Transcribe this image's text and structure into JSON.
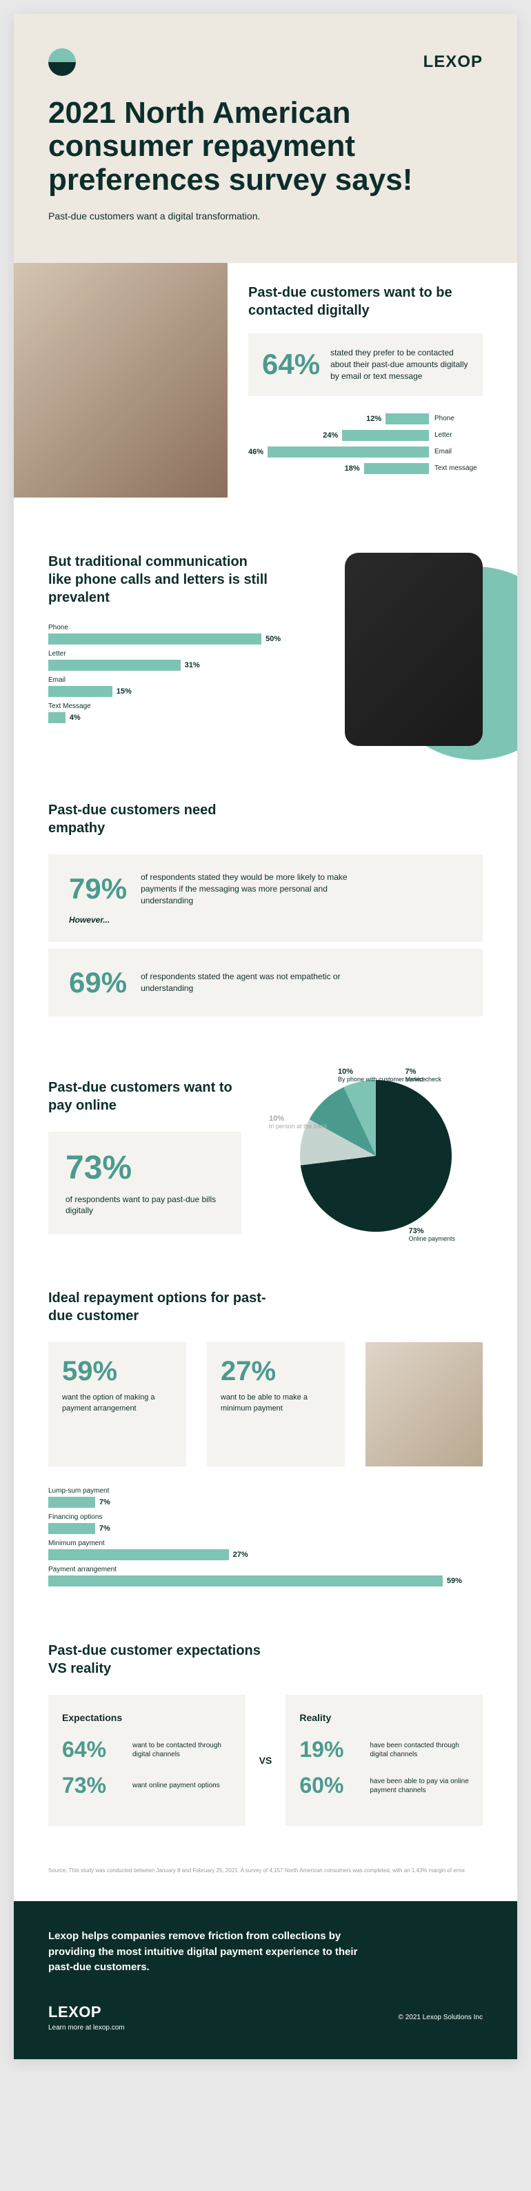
{
  "header": {
    "brand": "LEXOP",
    "title": "2021 North American consumer repayment preferences survey says!",
    "subtitle": "Past-due customers want a digital transformation."
  },
  "s1": {
    "heading": "Past-due customers want to be contacted digitally",
    "stat_pct": "64%",
    "stat_text": "stated they prefer to be contacted about their past-due amounts digitally by email or text message",
    "chart": {
      "type": "bar-horizontal",
      "bar_color": "#7ec4b5",
      "items": [
        {
          "label": "Phone",
          "pct": "12%",
          "value": 12
        },
        {
          "label": "Letter",
          "pct": "24%",
          "value": 24
        },
        {
          "label": "Email",
          "pct": "46%",
          "value": 46
        },
        {
          "label": "Text message",
          "pct": "18%",
          "value": 18
        }
      ],
      "max": 50
    }
  },
  "s2": {
    "heading": "But traditional communication like phone calls and letters is still prevalent",
    "chart": {
      "type": "bar-horizontal",
      "bar_color": "#7ec4b5",
      "items": [
        {
          "label": "Phone",
          "pct": "50%",
          "value": 50
        },
        {
          "label": "Letter",
          "pct": "31%",
          "value": 31
        },
        {
          "label": "Email",
          "pct": "15%",
          "value": 15
        },
        {
          "label": "Text Message",
          "pct": "4%",
          "value": 4
        }
      ],
      "max": 55
    }
  },
  "s3": {
    "heading": "Past-due customers need empathy",
    "row1_pct": "79%",
    "row1_text": "of respondents stated they would be more likely to make payments if the messaging was more personal and understanding",
    "however": "However...",
    "row2_pct": "69%",
    "row2_text": "of respondents stated the agent was not empathetic or understanding"
  },
  "s4": {
    "heading": "Past-due customers want to pay online",
    "stat_pct": "73%",
    "stat_text": "of respondents want to pay past-due bills digitally",
    "pie": {
      "type": "pie",
      "slices": [
        {
          "label": "Online payments",
          "pct": "73%",
          "value": 73,
          "color": "#0c2e2a"
        },
        {
          "label": "In person at the bank",
          "pct": "10%",
          "value": 10,
          "color": "#c5d4cf"
        },
        {
          "label": "By phone with customer service",
          "pct": "10%",
          "value": 10,
          "color": "#4a9b8e"
        },
        {
          "label": "Mailed check",
          "pct": "7%",
          "value": 7,
          "color": "#7ec4b5"
        }
      ]
    }
  },
  "s5": {
    "heading": "Ideal repayment options for past-due customer",
    "stat1_pct": "59%",
    "stat1_text": "want the option of making a payment arrangement",
    "stat2_pct": "27%",
    "stat2_text": "want to be able to make a minimum payment",
    "chart": {
      "type": "bar-horizontal",
      "bar_color": "#7ec4b5",
      "items": [
        {
          "label": "Lump-sum payment",
          "pct": "7%",
          "value": 7
        },
        {
          "label": "Financing options",
          "pct": "7%",
          "value": 7
        },
        {
          "label": "Minimum payment",
          "pct": "27%",
          "value": 27
        },
        {
          "label": "Payment arrangement",
          "pct": "59%",
          "value": 59
        }
      ],
      "max": 65
    }
  },
  "s6": {
    "heading": "Past-due customer expectations VS reality",
    "vs_label": "VS",
    "expectations": {
      "title": "Expectations",
      "row1_pct": "64%",
      "row1_text": "want to be contacted through digital channels",
      "row2_pct": "73%",
      "row2_text": "want online payment options"
    },
    "reality": {
      "title": "Reality",
      "row1_pct": "19%",
      "row1_text": "have been contacted through digital channels",
      "row2_pct": "60%",
      "row2_text": "have been able to pay via online payment channels"
    }
  },
  "source": "Source: This study was conducted between January 8 and February 25, 2021. A survey of 4,157 North American consumers was completed, with an 1.43% margin of error.",
  "footer": {
    "text": "Lexop helps companies remove friction from collections by providing the most intuitive digital payment experience to their past-due customers.",
    "brand": "LEXOP",
    "learn": "Learn more at lexop.com",
    "copy": "© 2021 Lexop Solutions Inc"
  },
  "colors": {
    "accent": "#4a9b8e",
    "accent_light": "#7ec4b5",
    "dark": "#0c2e2a",
    "cream": "#ede8e0",
    "panel": "#f5f3ef"
  }
}
